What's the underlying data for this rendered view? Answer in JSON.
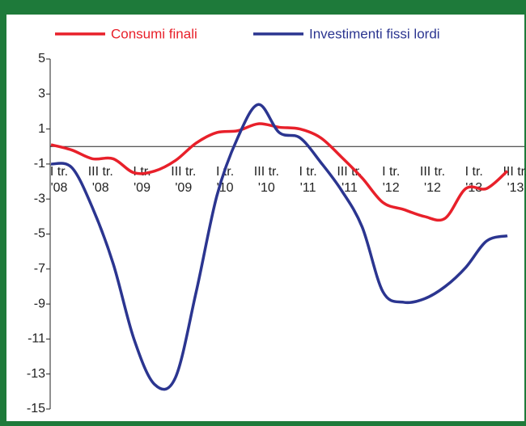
{
  "chart_data": {
    "type": "line",
    "categories": [
      "I tr.",
      null,
      "III tr.",
      null,
      "I tr.",
      null,
      "III tr.",
      null,
      "I tr.",
      null,
      "III tr.",
      null,
      "I tr.",
      null,
      "III tr.",
      null,
      "I tr.",
      null,
      "III tr.",
      null,
      "I tr.",
      null,
      "III tr."
    ],
    "category_years": [
      "'08",
      null,
      "'08",
      null,
      "'09",
      null,
      "'09",
      null,
      "'10",
      null,
      "'10",
      null,
      "'11",
      null,
      "'11",
      null,
      "'12",
      null,
      "'12",
      null,
      "'13",
      null,
      "'13"
    ],
    "series": [
      {
        "name": "Consumi finali",
        "color": "#e8202a",
        "values": [
          0.1,
          -0.2,
          -0.7,
          -0.7,
          -1.5,
          -1.4,
          -0.8,
          0.2,
          0.8,
          0.9,
          1.3,
          1.1,
          1.0,
          0.5,
          -0.6,
          -1.8,
          -3.2,
          -3.6,
          -4.0,
          -4.1,
          -2.4,
          -2.4,
          -1.4
        ]
      },
      {
        "name": "Investimenti fissi lordi",
        "color": "#2b3590",
        "values": [
          -1.0,
          -1.2,
          -3.5,
          -6.7,
          -11.0,
          -13.6,
          -13.2,
          -8.3,
          -2.8,
          0.5,
          2.4,
          0.8,
          0.5,
          -0.9,
          -2.5,
          -4.6,
          -8.3,
          -8.9,
          -8.7,
          -8.0,
          -6.9,
          -5.4,
          -5.1
        ]
      }
    ],
    "ylim": [
      -15,
      5
    ],
    "yticks": [
      5,
      3,
      1,
      -1,
      -3,
      -5,
      -7,
      -9,
      -11,
      -13,
      -15
    ]
  }
}
